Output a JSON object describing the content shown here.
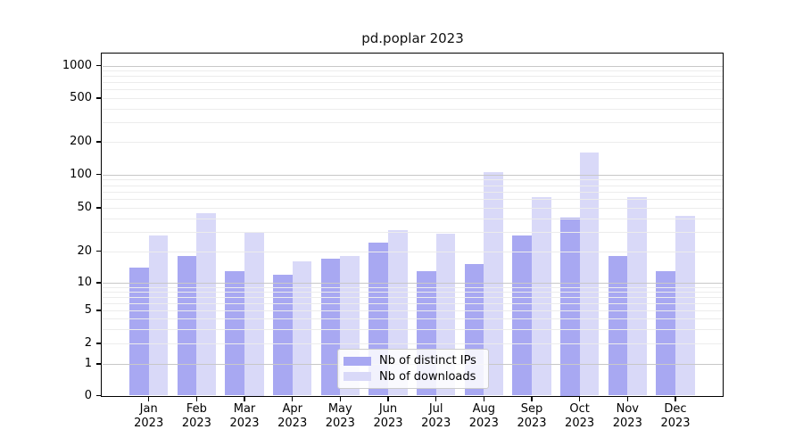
{
  "title": "pd.poplar 2023",
  "chart_data": {
    "type": "bar",
    "title": "pd.poplar 2023",
    "categories": [
      "Jan 2023",
      "Feb 2023",
      "Mar 2023",
      "Apr 2023",
      "May 2023",
      "Jun 2023",
      "Jul 2023",
      "Aug 2023",
      "Sep 2023",
      "Oct 2023",
      "Nov 2023",
      "Dec 2023"
    ],
    "months": [
      "Jan",
      "Feb",
      "Mar",
      "Apr",
      "May",
      "Jun",
      "Jul",
      "Aug",
      "Sep",
      "Oct",
      "Nov",
      "Dec"
    ],
    "year_label": "2023",
    "series": [
      {
        "name": "Nb of distinct IPs",
        "color": "#a8a8f2",
        "values": [
          14,
          18,
          13,
          12,
          17,
          24,
          13,
          15,
          28,
          41,
          18,
          13
        ]
      },
      {
        "name": "Nb of downloads",
        "color": "#d9d9f8",
        "values": [
          28,
          45,
          30,
          16,
          18,
          31,
          29,
          105,
          63,
          160,
          62,
          42
        ]
      }
    ],
    "yscale": "symlog",
    "y_ticks": [
      0,
      1,
      2,
      5,
      10,
      20,
      50,
      100,
      200,
      500,
      1000
    ],
    "ylim": [
      0,
      1300
    ],
    "grid": true,
    "legend_position": "lower center",
    "colors": {
      "grid_major": "#c8c8c8",
      "grid_minor": "#ececec",
      "axis": "#000000",
      "background": "#ffffff"
    }
  },
  "legend": {
    "items": [
      {
        "label": "Nb of distinct IPs",
        "color": "#a8a8f2"
      },
      {
        "label": "Nb of downloads",
        "color": "#d9d9f8"
      }
    ]
  }
}
